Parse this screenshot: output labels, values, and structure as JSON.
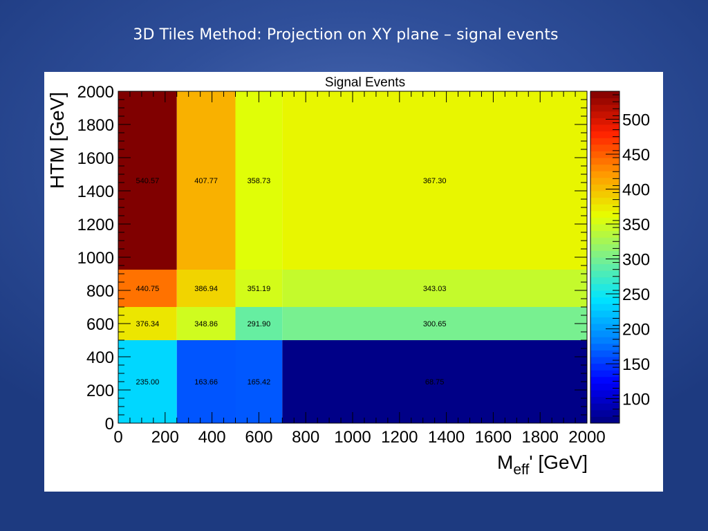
{
  "slide": {
    "title": "3D Tiles Method: Projection on XY plane – signal events"
  },
  "chart_data": {
    "type": "heatmap",
    "title": "Signal Events",
    "xlabel": "M",
    "xlabel_sub": "eff",
    "xlabel_suffix": "' [GeV]",
    "ylabel": "HTM [GeV]",
    "x_edges": [
      0,
      250,
      500,
      700,
      2000
    ],
    "y_edges": [
      0,
      500,
      700,
      925,
      2000
    ],
    "xlim": [
      0,
      2000
    ],
    "ylim": [
      0,
      2000
    ],
    "x_ticks": [
      0,
      200,
      400,
      600,
      800,
      1000,
      1200,
      1400,
      1600,
      1800,
      2000
    ],
    "y_ticks": [
      0,
      200,
      400,
      600,
      800,
      1000,
      1200,
      1400,
      1600,
      1800,
      2000
    ],
    "z_range": [
      65,
      540
    ],
    "z_ticks": [
      100,
      150,
      200,
      250,
      300,
      350,
      400,
      450,
      500
    ],
    "cells": [
      {
        "x_bin": 0,
        "y_bin": 3,
        "value": 540.57,
        "label": "540.57"
      },
      {
        "x_bin": 1,
        "y_bin": 3,
        "value": 407.77,
        "label": "407.77"
      },
      {
        "x_bin": 2,
        "y_bin": 3,
        "value": 358.73,
        "label": "358.73"
      },
      {
        "x_bin": 3,
        "y_bin": 3,
        "value": 367.3,
        "label": "367.30"
      },
      {
        "x_bin": 0,
        "y_bin": 2,
        "value": 440.75,
        "label": "440.75"
      },
      {
        "x_bin": 1,
        "y_bin": 2,
        "value": 386.94,
        "label": "386.94"
      },
      {
        "x_bin": 2,
        "y_bin": 2,
        "value": 351.19,
        "label": "351.19"
      },
      {
        "x_bin": 3,
        "y_bin": 2,
        "value": 343.03,
        "label": "343.03"
      },
      {
        "x_bin": 0,
        "y_bin": 1,
        "value": 376.34,
        "label": "376.34"
      },
      {
        "x_bin": 1,
        "y_bin": 1,
        "value": 348.86,
        "label": "348.86"
      },
      {
        "x_bin": 2,
        "y_bin": 1,
        "value": 291.9,
        "label": "291.90"
      },
      {
        "x_bin": 3,
        "y_bin": 1,
        "value": 300.65,
        "label": "300.65"
      },
      {
        "x_bin": 0,
        "y_bin": 0,
        "value": 235.0,
        "label": "235.00"
      },
      {
        "x_bin": 1,
        "y_bin": 0,
        "value": 163.66,
        "label": "163.66"
      },
      {
        "x_bin": 2,
        "y_bin": 0,
        "value": 165.42,
        "label": "165.42"
      },
      {
        "x_bin": 3,
        "y_bin": 0,
        "value": 68.75,
        "label": "68.75"
      }
    ],
    "colormap": [
      "#00007f",
      "#0000ff",
      "#0080ff",
      "#00e5ff",
      "#7cf08c",
      "#e6ff00",
      "#ff9a00",
      "#ff2000",
      "#800000"
    ]
  }
}
